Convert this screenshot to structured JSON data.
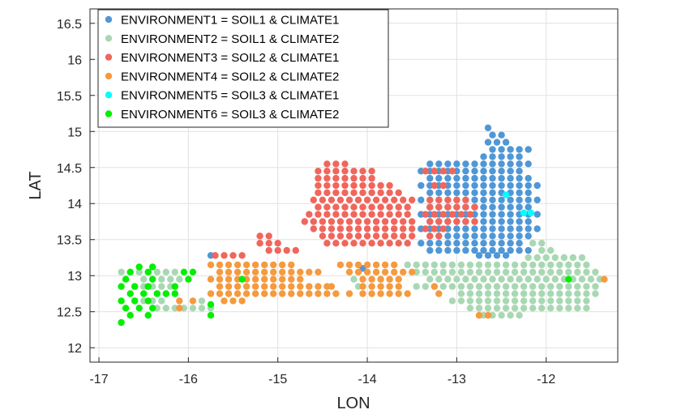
{
  "chart_data": {
    "type": "scatter",
    "xlabel": "LON",
    "ylabel": "LAT",
    "xlim": [
      -17.1,
      -11.2
    ],
    "ylim": [
      11.8,
      16.7
    ],
    "xticks": [
      -17,
      -16,
      -15,
      -14,
      -13,
      -12
    ],
    "yticks": [
      12,
      12.5,
      13,
      13.5,
      14,
      14.5,
      15,
      15.5,
      16,
      16.5
    ],
    "xtick_labels": [
      "-17",
      "-16",
      "-15",
      "-14",
      "-13",
      "-12"
    ],
    "ytick_labels": [
      "12",
      "12.5",
      "13",
      "13.5",
      "14",
      "14.5",
      "15",
      "15.5",
      "16",
      "16.5"
    ],
    "grid": true,
    "legend_position": "top-left",
    "series": [
      {
        "name": "ENVIRONMENT1 = SOIL1 & CLIMATE1",
        "color": "#4f97d6",
        "regions": [
          {
            "lat": 15.05,
            "lon_min": -12.65,
            "lon_max": -12.65
          },
          {
            "lat": 14.95,
            "lon_min": -12.6,
            "lon_max": -12.5
          },
          {
            "lat": 14.85,
            "lon_min": -12.65,
            "lon_max": -12.45
          },
          {
            "lat": 14.75,
            "lon_min": -12.6,
            "lon_max": -12.2
          },
          {
            "lat": 14.65,
            "lon_min": -12.7,
            "lon_max": -12.3
          },
          {
            "lat": 14.55,
            "lon_min": -13.3,
            "lon_max": -12.2
          },
          {
            "lat": 14.45,
            "lon_min": -13.4,
            "lon_max": -12.3
          },
          {
            "lat": 14.35,
            "lon_min": -13.3,
            "lon_max": -12.2
          },
          {
            "lat": 14.25,
            "lon_min": -13.4,
            "lon_max": -12.1
          },
          {
            "lat": 14.15,
            "lon_min": -13.3,
            "lon_max": -12.2
          },
          {
            "lat": 14.05,
            "lon_min": -13.4,
            "lon_max": -12.1
          },
          {
            "lat": 13.95,
            "lon_min": -13.3,
            "lon_max": -12.2
          },
          {
            "lat": 13.85,
            "lon_min": -13.4,
            "lon_max": -12.1
          },
          {
            "lat": 13.75,
            "lon_min": -13.3,
            "lon_max": -12.2
          },
          {
            "lat": 13.65,
            "lon_min": -13.4,
            "lon_max": -12.1
          },
          {
            "lat": 13.55,
            "lon_min": -13.3,
            "lon_max": -12.2
          },
          {
            "lat": 13.45,
            "lon_min": -13.4,
            "lon_max": -12.3
          },
          {
            "lat": 13.35,
            "lon_min": -13.3,
            "lon_max": -12.2
          },
          {
            "lat": 13.28,
            "lon_min": -12.75,
            "lon_max": -12.45
          }
        ],
        "points": [
          [
            -15.75,
            13.28
          ],
          [
            -14.05,
            13.1
          ]
        ]
      },
      {
        "name": "ENVIRONMENT2 = SOIL1 & CLIMATE2",
        "color": "#a8d8b3",
        "regions": [
          {
            "lat": 13.45,
            "lon_min": -12.15,
            "lon_max": -12.05
          },
          {
            "lat": 13.35,
            "lon_min": -12.05,
            "lon_max": -11.9
          },
          {
            "lat": 13.25,
            "lon_min": -12.2,
            "lon_max": -11.55
          },
          {
            "lat": 13.15,
            "lon_min": -13.55,
            "lon_max": -11.5
          },
          {
            "lat": 13.05,
            "lon_min": -13.45,
            "lon_max": -11.45
          },
          {
            "lat": 12.95,
            "lon_min": -13.3,
            "lon_max": -11.35
          },
          {
            "lat": 12.85,
            "lon_min": -13.45,
            "lon_max": -11.45
          },
          {
            "lat": 12.75,
            "lon_min": -12.95,
            "lon_max": -11.45
          },
          {
            "lat": 12.65,
            "lon_min": -13.05,
            "lon_max": -11.55
          },
          {
            "lat": 12.55,
            "lon_min": -12.85,
            "lon_max": -11.5
          },
          {
            "lat": 12.45,
            "lon_min": -12.7,
            "lon_max": -12.25
          },
          {
            "lat": 13.05,
            "lon_min": -16.75,
            "lon_max": -16.1
          },
          {
            "lat": 12.95,
            "lon_min": -16.5,
            "lon_max": -16.05
          },
          {
            "lat": 12.85,
            "lon_min": -16.6,
            "lon_max": -16.2
          },
          {
            "lat": 12.75,
            "lon_min": -16.35,
            "lon_max": -16.1
          },
          {
            "lat": 12.65,
            "lon_min": -16.6,
            "lon_max": -16.25
          },
          {
            "lat": 12.55,
            "lon_min": -16.35,
            "lon_max": -15.85
          }
        ],
        "points": [
          [
            -15.85,
            12.65
          ],
          [
            -15.75,
            12.55
          ],
          [
            -14.15,
            12.95
          ],
          [
            -14.1,
            12.85
          ]
        ]
      },
      {
        "name": "ENVIRONMENT3 = SOIL2 & CLIMATE1",
        "color": "#f0665c",
        "regions": [
          {
            "lat": 14.55,
            "lon_min": -14.45,
            "lon_max": -14.25
          },
          {
            "lat": 14.45,
            "lon_min": -14.55,
            "lon_max": -13.9
          },
          {
            "lat": 14.35,
            "lon_min": -14.55,
            "lon_max": -13.9
          },
          {
            "lat": 14.25,
            "lon_min": -14.55,
            "lon_max": -13.75
          },
          {
            "lat": 14.15,
            "lon_min": -14.55,
            "lon_max": -13.6
          },
          {
            "lat": 14.05,
            "lon_min": -14.6,
            "lon_max": -13.5
          },
          {
            "lat": 13.95,
            "lon_min": -14.55,
            "lon_max": -13.5
          },
          {
            "lat": 13.85,
            "lon_min": -14.65,
            "lon_max": -13.5
          },
          {
            "lat": 13.75,
            "lon_min": -14.7,
            "lon_max": -13.45
          },
          {
            "lat": 13.65,
            "lon_min": -14.6,
            "lon_max": -13.45
          },
          {
            "lat": 13.55,
            "lon_min": -14.5,
            "lon_max": -13.45
          },
          {
            "lat": 13.45,
            "lon_min": -14.45,
            "lon_max": -13.5
          },
          {
            "lat": 13.55,
            "lon_min": -15.2,
            "lon_max": -15.1
          },
          {
            "lat": 13.45,
            "lon_min": -15.2,
            "lon_max": -14.95
          },
          {
            "lat": 13.35,
            "lon_min": -15.1,
            "lon_max": -14.8
          },
          {
            "lat": 13.28,
            "lon_min": -15.7,
            "lon_max": -15.35
          },
          {
            "lat": 14.45,
            "lon_min": -13.35,
            "lon_max": -13.05
          },
          {
            "lat": 14.25,
            "lon_min": -13.25,
            "lon_max": -13.1
          },
          {
            "lat": 14.05,
            "lon_min": -13.3,
            "lon_max": -12.85
          },
          {
            "lat": 13.95,
            "lon_min": -13.3,
            "lon_max": -12.8
          },
          {
            "lat": 13.85,
            "lon_min": -13.35,
            "lon_max": -12.85
          },
          {
            "lat": 13.75,
            "lon_min": -13.3,
            "lon_max": -12.8
          },
          {
            "lat": 13.65,
            "lon_min": -13.35,
            "lon_max": -13.15
          },
          {
            "lat": 13.55,
            "lon_min": -13.3,
            "lon_max": -13.15
          }
        ],
        "points": []
      },
      {
        "name": "ENVIRONMENT4 = SOIL2 & CLIMATE2",
        "color": "#f59a3e",
        "regions": [
          {
            "lat": 13.15,
            "lon_min": -15.75,
            "lon_max": -14.8
          },
          {
            "lat": 13.05,
            "lon_min": -15.65,
            "lon_max": -14.55
          },
          {
            "lat": 12.95,
            "lon_min": -15.75,
            "lon_max": -14.7
          },
          {
            "lat": 12.85,
            "lon_min": -15.65,
            "lon_max": -14.45
          },
          {
            "lat": 12.75,
            "lon_min": -15.75,
            "lon_max": -14.3
          },
          {
            "lat": 12.65,
            "lon_min": -15.6,
            "lon_max": -15.35
          },
          {
            "lat": 13.15,
            "lon_min": -14.3,
            "lon_max": -13.65
          },
          {
            "lat": 13.05,
            "lon_min": -14.2,
            "lon_max": -13.5
          },
          {
            "lat": 12.95,
            "lon_min": -14.05,
            "lon_max": -13.6
          },
          {
            "lat": 12.85,
            "lon_min": -14.05,
            "lon_max": -13.6
          },
          {
            "lat": 12.75,
            "lon_min": -14.05,
            "lon_max": -13.6
          }
        ],
        "points": [
          [
            -16.1,
            12.65
          ],
          [
            -16.1,
            12.55
          ],
          [
            -15.95,
            12.65
          ],
          [
            -14.4,
            12.85
          ],
          [
            -14.2,
            12.75
          ],
          [
            -13.55,
            12.75
          ],
          [
            -13.2,
            12.75
          ],
          [
            -13.25,
            12.85
          ],
          [
            -12.75,
            12.45
          ],
          [
            -12.65,
            12.45
          ],
          [
            -11.35,
            12.95
          ]
        ]
      },
      {
        "name": "ENVIRONMENT5 = SOIL3 & CLIMATE1",
        "color": "#00ffff",
        "regions": [],
        "points": [
          [
            -12.45,
            14.12
          ],
          [
            -12.25,
            13.87
          ],
          [
            -12.17,
            13.87
          ]
        ]
      },
      {
        "name": "ENVIRONMENT6 = SOIL3 & CLIMATE2",
        "color": "#00f000",
        "regions": [],
        "points": [
          [
            -16.55,
            13.12
          ],
          [
            -16.4,
            13.12
          ],
          [
            -16.65,
            13.05
          ],
          [
            -16.45,
            13.05
          ],
          [
            -16.7,
            12.95
          ],
          [
            -16.4,
            12.95
          ],
          [
            -16.75,
            12.85
          ],
          [
            -16.6,
            12.85
          ],
          [
            -16.45,
            12.85
          ],
          [
            -16.65,
            12.75
          ],
          [
            -16.5,
            12.75
          ],
          [
            -16.35,
            12.75
          ],
          [
            -16.75,
            12.65
          ],
          [
            -16.6,
            12.65
          ],
          [
            -16.45,
            12.65
          ],
          [
            -16.7,
            12.55
          ],
          [
            -16.55,
            12.55
          ],
          [
            -16.4,
            12.55
          ],
          [
            -16.65,
            12.45
          ],
          [
            -16.45,
            12.45
          ],
          [
            -16.75,
            12.35
          ],
          [
            -16.05,
            13.05
          ],
          [
            -15.95,
            13.05
          ],
          [
            -16.0,
            12.95
          ],
          [
            -16.15,
            12.85
          ],
          [
            -16.25,
            12.75
          ],
          [
            -16.15,
            12.75
          ],
          [
            -15.75,
            12.6
          ],
          [
            -15.75,
            12.45
          ],
          [
            -15.4,
            12.95
          ],
          [
            -11.75,
            12.95
          ]
        ]
      }
    ]
  }
}
